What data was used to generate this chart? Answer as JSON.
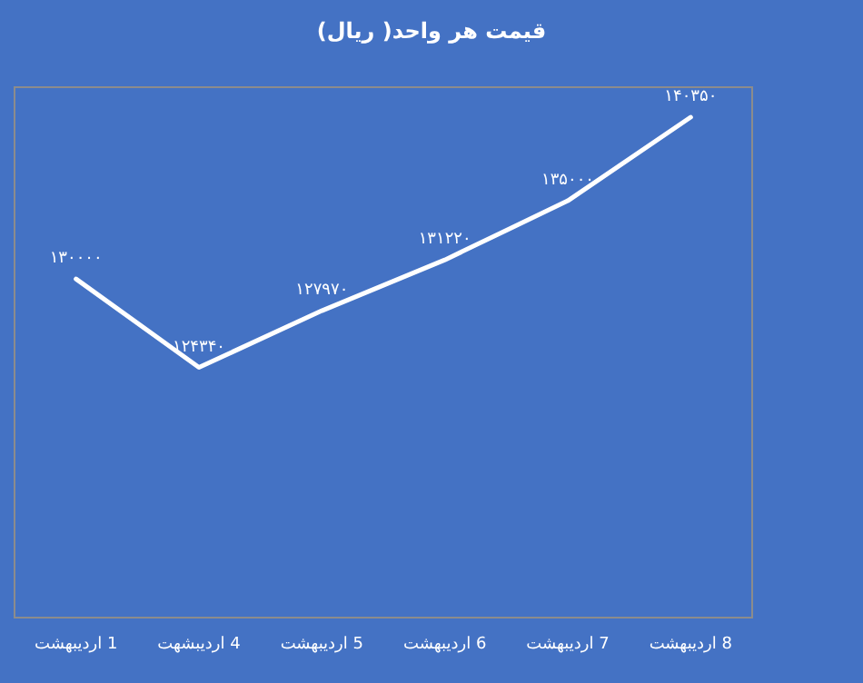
{
  "chart_data": {
    "type": "line",
    "title": "قیمت هر واحد( ریال)",
    "categories": [
      "1 اردیبهشت",
      "4 اردیبشهت",
      "5 اردیبهشت",
      "6 اردیبهشت",
      "7 اردیبهشت",
      "8 اردیبهشت"
    ],
    "series": [
      {
        "color": "#ffffff",
        "values": [
          130000,
          124340,
          127970,
          131220,
          135000,
          140350
        ],
        "value_labels": [
          "۱۳۰۰۰۰",
          "۱۲۴۳۴۰",
          "۱۲۷۹۷۰",
          "۱۳۱۲۲۰",
          "۱۳۵۰۰۰",
          "۱۴۰۳۵۰"
        ]
      }
    ],
    "grid": false,
    "marker": "none",
    "line_style": "solid"
  }
}
